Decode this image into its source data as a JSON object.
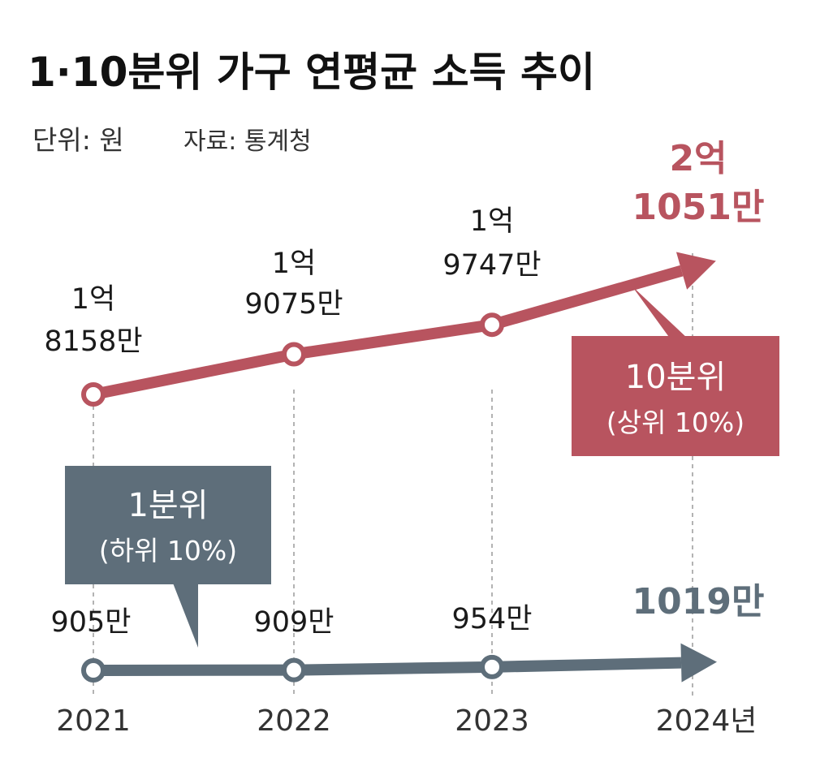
{
  "header": {
    "title": "1·10분위 가구 연평균 소득 추이",
    "unit": "단위: 원",
    "source": "자료: 통계청"
  },
  "colors": {
    "top_series": "#b8545f",
    "bottom_series": "#5e6e7a",
    "grid": "#9a9a9a"
  },
  "chart_data": {
    "type": "line",
    "x": [
      "2021",
      "2022",
      "2023",
      "2024년"
    ],
    "ylabel": "",
    "xlabel": "",
    "grid": false,
    "series": [
      {
        "name": "10분위",
        "subname": "(상위 10%)",
        "values": [
          181580000,
          190750000,
          197470000,
          210510000
        ],
        "labels": [
          [
            "1억",
            "8158만"
          ],
          [
            "1억",
            "9075만"
          ],
          [
            "1억",
            "9747만"
          ],
          [
            "2억",
            "1051만"
          ]
        ]
      },
      {
        "name": "1분위",
        "subname": "(하위 10%)",
        "values": [
          9050000,
          9090000,
          9540000,
          10190000
        ],
        "labels": [
          [
            "905만"
          ],
          [
            "909만"
          ],
          [
            "954만"
          ],
          [
            "1019만"
          ]
        ]
      }
    ]
  }
}
